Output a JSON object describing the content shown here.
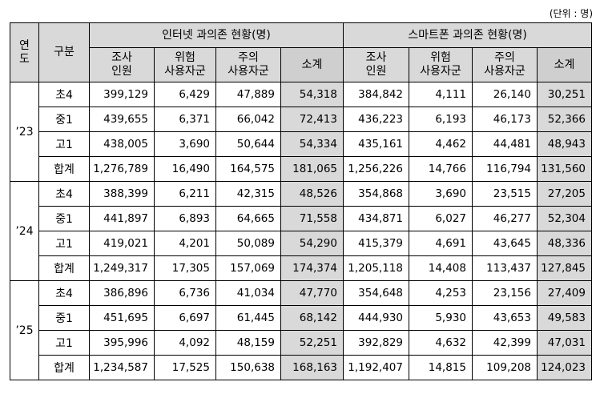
{
  "unit_note": "(단위 : 명)",
  "header": {
    "year": "연\n도",
    "category": "구분",
    "internet_title": "인터넷 과의존 현황(명)",
    "smartphone_title": "스마트폰 과의존 현황(명)",
    "sub": [
      "조사\n인원",
      "위험\n사용자군",
      "주의\n사용자군",
      "소계"
    ]
  },
  "groups": [
    {
      "year": "’23",
      "rows": [
        {
          "label": "초4",
          "values": [
            "399,129",
            "6,429",
            "47,889",
            "54,318",
            "384,842",
            "4,111",
            "26,140",
            "30,251"
          ]
        },
        {
          "label": "중1",
          "values": [
            "439,655",
            "6,371",
            "66,042",
            "72,413",
            "436,223",
            "6,193",
            "46,173",
            "52,366"
          ]
        },
        {
          "label": "고1",
          "values": [
            "438,005",
            "3,690",
            "50,644",
            "54,334",
            "435,161",
            "4,462",
            "44,481",
            "48,943"
          ]
        },
        {
          "label": "합계",
          "values": [
            "1,276,789",
            "16,490",
            "164,575",
            "181,065",
            "1,256,226",
            "14,766",
            "116,794",
            "131,560"
          ]
        }
      ]
    },
    {
      "year": "’24",
      "rows": [
        {
          "label": "초4",
          "values": [
            "388,399",
            "6,211",
            "42,315",
            "48,526",
            "354,868",
            "3,690",
            "23,515",
            "27,205"
          ]
        },
        {
          "label": "중1",
          "values": [
            "441,897",
            "6,893",
            "64,665",
            "71,558",
            "434,871",
            "6,027",
            "46,277",
            "52,304"
          ]
        },
        {
          "label": "고1",
          "values": [
            "419,021",
            "4,201",
            "50,089",
            "54,290",
            "415,379",
            "4,691",
            "43,645",
            "48,336"
          ]
        },
        {
          "label": "합계",
          "values": [
            "1,249,317",
            "17,305",
            "157,069",
            "174,374",
            "1,205,118",
            "14,408",
            "113,437",
            "127,845"
          ]
        }
      ]
    },
    {
      "year": "’25",
      "rows": [
        {
          "label": "초4",
          "values": [
            "386,896",
            "6,736",
            "41,034",
            "47,770",
            "354,648",
            "4,253",
            "23,156",
            "27,409"
          ]
        },
        {
          "label": "중1",
          "values": [
            "451,695",
            "6,697",
            "61,445",
            "68,142",
            "444,930",
            "5,930",
            "43,653",
            "49,583"
          ]
        },
        {
          "label": "고1",
          "values": [
            "395,996",
            "4,092",
            "48,159",
            "52,251",
            "392,829",
            "4,632",
            "42,399",
            "47,031"
          ]
        },
        {
          "label": "합계",
          "values": [
            "1,234,587",
            "17,525",
            "150,638",
            "168,163",
            "1,192,407",
            "14,815",
            "109,208",
            "124,023"
          ]
        }
      ]
    }
  ]
}
